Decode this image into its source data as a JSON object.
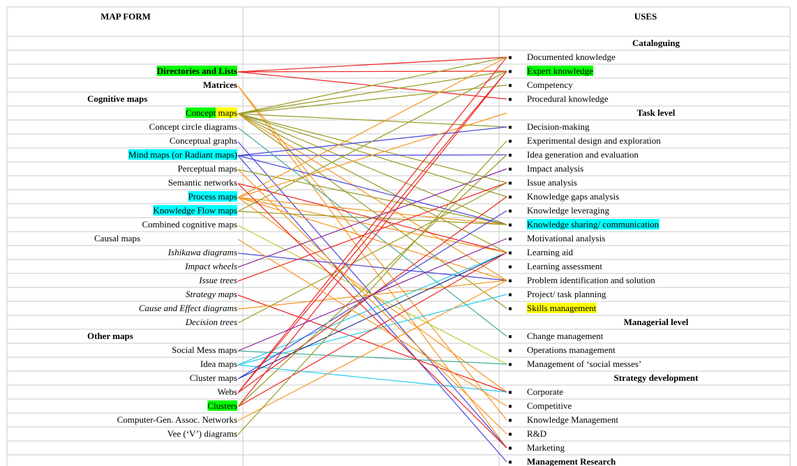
{
  "header": {
    "left": "MAP FORM",
    "right": "USES"
  },
  "left": [
    "Directories and Lists",
    "Matrices",
    "Cognitive maps",
    "Concept maps",
    "Concept circle diagrams",
    "Conceptual graphs",
    "Mind maps (or Radiant maps)",
    "Perceptual maps",
    "Semantic networks",
    "Process maps",
    "Knowledge Flow maps",
    "Combined cognitive maps",
    "Causal maps",
    "Ishikawa diagrams",
    "Impact wheels",
    "Issue trees",
    "Strategy maps",
    "Cause and Effect diagrams",
    "Decision trees",
    "Other maps",
    "Social Mess maps",
    "Idea maps",
    "Cluster maps",
    "Webs",
    "Clusters",
    "Computer-Gen. Assoc. Networks",
    "Vee (‘V’) diagrams"
  ],
  "right": [
    "Cataloguing",
    "Documented knowledge",
    "Expert knowledge",
    "Competency",
    "Procedural knowledge",
    "Task level",
    "Decision-making",
    "Experimental design and exploration",
    "Idea generation and evaluation",
    "Impact analysis",
    "Issue analysis",
    "Knowledge gaps analysis",
    "Knowledge leveraging",
    "Knowledge sharing/ communication",
    "Motivational analysis",
    "Learning aid",
    "Learning assessment",
    "Problem identification and solution",
    "Project/ task planning",
    "Skills management",
    "Managerial level",
    "Change management",
    "Operations management",
    "Management of ‘social messes’",
    "Strategy development",
    "Corporate",
    "Competitive",
    "Knowledge Management",
    "R&D",
    "Marketing",
    "Management Research"
  ]
}
